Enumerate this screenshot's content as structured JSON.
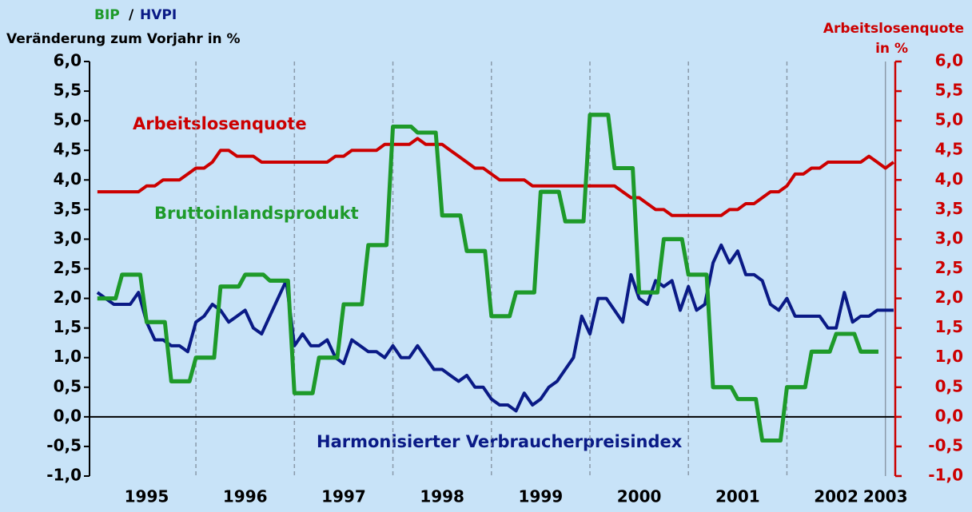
{
  "chart_data": {
    "type": "line",
    "header_parts": [
      "BIP",
      "/",
      "HVPI"
    ],
    "ylabel": "Veränderung zum Vorjahr in %",
    "y2label": [
      "Arbeitslosenquote",
      "in %"
    ],
    "xlim": [
      1994.92,
      2003.1
    ],
    "xticks": [
      1995,
      1996,
      1997,
      1998,
      1999,
      2000,
      2001,
      2002,
      2003
    ],
    "ylim": [
      -1,
      6
    ],
    "yticks": [
      {
        "value": -1,
        "label": "-1,0"
      },
      {
        "value": -0.5,
        "label": "-0,5"
      },
      {
        "value": 0,
        "label": "0,0"
      },
      {
        "value": 0.5,
        "label": "0,5"
      },
      {
        "value": 1,
        "label": "1,0"
      },
      {
        "value": 1.5,
        "label": "1,5"
      },
      {
        "value": 2,
        "label": "2,0"
      },
      {
        "value": 2.5,
        "label": "2,5"
      },
      {
        "value": 3,
        "label": "3,0"
      },
      {
        "value": 3.5,
        "label": "3,5"
      },
      {
        "value": 4,
        "label": "4,0"
      },
      {
        "value": 4.5,
        "label": "4,5"
      },
      {
        "value": 5,
        "label": "5,0"
      },
      {
        "value": 5.5,
        "label": "5,5"
      },
      {
        "value": 6,
        "label": "6,0"
      }
    ],
    "y2lim": [
      -1,
      6
    ],
    "y2ticks": [
      {
        "value": -1,
        "label": "-1,0"
      },
      {
        "value": -0.5,
        "label": "-0,5"
      },
      {
        "value": 0,
        "label": "0,0"
      },
      {
        "value": 0.5,
        "label": "0,5"
      },
      {
        "value": 1,
        "label": "1,0"
      },
      {
        "value": 1.5,
        "label": "1,5"
      },
      {
        "value": 2,
        "label": "2,0"
      },
      {
        "value": 2.5,
        "label": "2,5"
      },
      {
        "value": 3,
        "label": "3,0"
      },
      {
        "value": 3.5,
        "label": "3,5"
      },
      {
        "value": 4,
        "label": "4,0"
      },
      {
        "value": 4.5,
        "label": "4,5"
      },
      {
        "value": 5,
        "label": "5,0"
      },
      {
        "value": 5.5,
        "label": "5,5"
      },
      {
        "value": 6,
        "label": "6,0"
      }
    ],
    "grid": true,
    "x": [
      1995,
      1995.083,
      1995.167,
      1995.25,
      1995.333,
      1995.417,
      1995.5,
      1995.583,
      1995.667,
      1995.75,
      1995.833,
      1995.917,
      1996,
      1996.083,
      1996.167,
      1996.25,
      1996.333,
      1996.417,
      1996.5,
      1996.583,
      1996.667,
      1996.75,
      1996.833,
      1996.917,
      1997,
      1997.083,
      1997.167,
      1997.25,
      1997.333,
      1997.417,
      1997.5,
      1997.583,
      1997.667,
      1997.75,
      1997.833,
      1997.917,
      1998,
      1998.083,
      1998.167,
      1998.25,
      1998.333,
      1998.417,
      1998.5,
      1998.583,
      1998.667,
      1998.75,
      1998.833,
      1998.917,
      1999,
      1999.083,
      1999.167,
      1999.25,
      1999.333,
      1999.417,
      1999.5,
      1999.583,
      1999.667,
      1999.75,
      1999.833,
      1999.917,
      2000,
      2000.083,
      2000.167,
      2000.25,
      2000.333,
      2000.417,
      2000.5,
      2000.583,
      2000.667,
      2000.75,
      2000.833,
      2000.917,
      2001,
      2001.083,
      2001.167,
      2001.25,
      2001.333,
      2001.417,
      2001.5,
      2001.583,
      2001.667,
      2001.75,
      2001.833,
      2001.917,
      2002,
      2002.083,
      2002.167,
      2002.25,
      2002.333,
      2002.417,
      2002.5,
      2002.583,
      2002.667,
      2002.75,
      2002.833,
      2002.917,
      2003,
      2003.083
    ],
    "series": [
      {
        "name": "Arbeitslosenquote",
        "color": "#cc0000",
        "axis": "y2",
        "values": [
          3.8,
          3.8,
          3.8,
          3.8,
          3.8,
          3.8,
          3.9,
          3.9,
          4.0,
          4.0,
          4.0,
          4.1,
          4.2,
          4.2,
          4.3,
          4.5,
          4.5,
          4.4,
          4.4,
          4.4,
          4.3,
          4.3,
          4.3,
          4.3,
          4.3,
          4.3,
          4.3,
          4.3,
          4.3,
          4.4,
          4.4,
          4.5,
          4.5,
          4.5,
          4.5,
          4.6,
          4.6,
          4.6,
          4.6,
          4.7,
          4.6,
          4.6,
          4.6,
          4.5,
          4.4,
          4.3,
          4.2,
          4.2,
          4.1,
          4.0,
          4.0,
          4.0,
          4.0,
          3.9,
          3.9,
          3.9,
          3.9,
          3.9,
          3.9,
          3.9,
          3.9,
          3.9,
          3.9,
          3.9,
          3.8,
          3.7,
          3.7,
          3.6,
          3.5,
          3.5,
          3.4,
          3.4,
          3.4,
          3.4,
          3.4,
          3.4,
          3.4,
          3.5,
          3.5,
          3.6,
          3.6,
          3.7,
          3.8,
          3.8,
          3.9,
          4.1,
          4.1,
          4.2,
          4.2,
          4.3,
          4.3,
          4.3,
          4.3,
          4.3,
          4.4,
          4.3,
          4.2,
          4.3
        ]
      },
      {
        "name": "Harmonisierter Verbraucherpreisindex",
        "color": "#0a1a86",
        "values": [
          2.1,
          2.0,
          1.9,
          1.9,
          1.9,
          2.1,
          1.6,
          1.3,
          1.3,
          1.2,
          1.2,
          1.1,
          1.6,
          1.7,
          1.9,
          1.8,
          1.6,
          1.7,
          1.8,
          1.5,
          1.4,
          1.7,
          2.0,
          2.3,
          1.2,
          1.4,
          1.2,
          1.2,
          1.3,
          1.0,
          0.9,
          1.3,
          1.2,
          1.1,
          1.1,
          1.0,
          1.2,
          1.0,
          1.0,
          1.2,
          1.0,
          0.8,
          0.8,
          0.7,
          0.6,
          0.7,
          0.5,
          0.5,
          0.3,
          0.2,
          0.2,
          0.1,
          0.4,
          0.2,
          0.3,
          0.5,
          0.6,
          0.8,
          1.0,
          1.7,
          1.4,
          2.0,
          2.0,
          1.8,
          1.6,
          2.4,
          2.0,
          1.9,
          2.3,
          2.2,
          2.3,
          1.8,
          2.2,
          1.8,
          1.9,
          2.6,
          2.9,
          2.6,
          2.8,
          2.4,
          2.4,
          2.3,
          1.9,
          1.8,
          2.0,
          1.7,
          1.7,
          1.7,
          1.7,
          1.5,
          1.5,
          2.1,
          1.6,
          1.7,
          1.7,
          1.8,
          1.8,
          1.8
        ]
      },
      {
        "name": "Bruttoinlandsprodukt",
        "color": "#1e9a2a",
        "step": true,
        "x": [
          1995,
          1995.25,
          1995.5,
          1995.75,
          1996,
          1996.25,
          1996.5,
          1996.75,
          1997,
          1997.25,
          1997.5,
          1997.75,
          1998,
          1998.25,
          1998.5,
          1998.75,
          1999,
          1999.25,
          1999.5,
          1999.75,
          2000,
          2000.25,
          2000.5,
          2000.75,
          2001,
          2001.25,
          2001.5,
          2001.75,
          2002,
          2002.25,
          2002.5,
          2002.75
        ],
        "values": [
          2.0,
          2.4,
          1.6,
          0.6,
          1.0,
          2.2,
          2.4,
          2.3,
          0.4,
          1.0,
          1.9,
          2.9,
          4.9,
          4.8,
          3.4,
          2.8,
          1.7,
          2.1,
          3.8,
          3.3,
          5.1,
          4.2,
          2.1,
          3.0,
          2.4,
          0.5,
          0.3,
          -0.4,
          0.5,
          1.1,
          1.4,
          1.1
        ]
      }
    ]
  }
}
